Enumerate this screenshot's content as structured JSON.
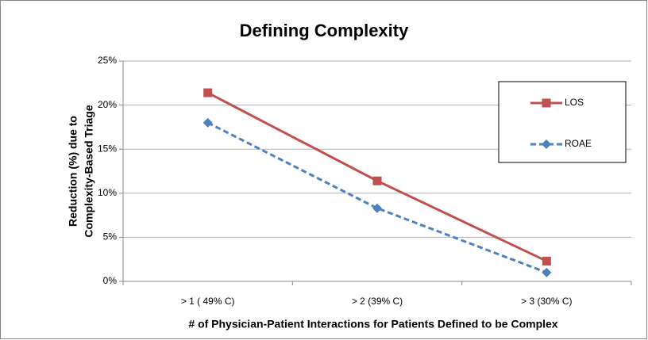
{
  "chart_data": {
    "type": "line",
    "title": "Defining Complexity",
    "x_label": "# of Physician-Patient Interactions for Patients Defined to be Complex",
    "y_label": [
      "Reduction (%) due to",
      "Complexity-Based Triage"
    ],
    "categories": [
      "> 1 ( 49% C)",
      "> 2  (39% C)",
      "> 3 (30% C)"
    ],
    "series": [
      {
        "name": "LOS",
        "color": "#c0504d",
        "line_style": "solid",
        "marker": "square",
        "values": [
          21.4,
          11.4,
          2.3
        ]
      },
      {
        "name": "ROAE",
        "color": "#4f81bd",
        "line_style": "dashed",
        "marker": "diamond",
        "values": [
          18,
          8.3,
          1.0
        ]
      }
    ],
    "ylim": [
      0,
      25
    ],
    "yticks": [
      {
        "value": 0,
        "label": "0%"
      },
      {
        "value": 5,
        "label": "5%"
      },
      {
        "value": 10,
        "label": "10%"
      },
      {
        "value": 15,
        "label": "15%"
      },
      {
        "value": 20,
        "label": "20%"
      },
      {
        "value": 25,
        "label": "25%"
      }
    ],
    "grid": true,
    "legend": "right"
  }
}
